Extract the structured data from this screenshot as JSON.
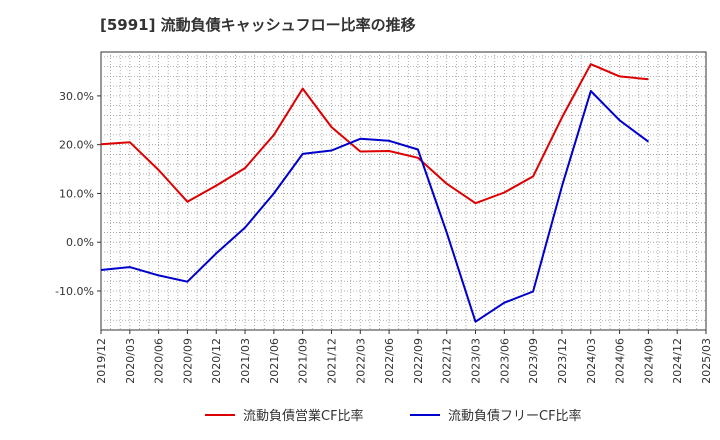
{
  "chart_data": {
    "type": "line",
    "title": "[5991]  流動負債キャッシュフロー比率の推移",
    "xlabel": "",
    "ylabel": "",
    "ylim": [
      -18,
      39
    ],
    "y_ticks": [
      -10,
      0,
      10,
      20,
      30
    ],
    "y_tick_labels": [
      "-10.0%",
      "0.0%",
      "10.0%",
      "20.0%",
      "30.0%"
    ],
    "x": [
      "2019/12",
      "2020/03",
      "2020/06",
      "2020/09",
      "2020/12",
      "2021/03",
      "2021/06",
      "2021/09",
      "2021/12",
      "2022/03",
      "2022/06",
      "2022/09",
      "2022/12",
      "2023/03",
      "2023/06",
      "2023/09",
      "2023/12",
      "2024/03",
      "2024/06",
      "2024/09",
      "2024/12",
      "2025/03"
    ],
    "grid": true,
    "legend_position": "bottom",
    "series": [
      {
        "name": "流動負債営業CF比率",
        "color": "#dd0000",
        "values": [
          20.1,
          20.5,
          14.8,
          8.3,
          11.6,
          15.2,
          22.0,
          31.5,
          23.6,
          18.6,
          18.7,
          17.3,
          12.0,
          8.0,
          10.2,
          13.5,
          25.6,
          36.5,
          34.0,
          33.4,
          null,
          null
        ]
      },
      {
        "name": "流動負債フリーCF比率",
        "color": "#0000cc",
        "values": [
          -5.7,
          -5.1,
          -6.8,
          -8.1,
          -2.3,
          3.0,
          10.0,
          18.1,
          18.8,
          21.2,
          20.8,
          19.0,
          2.0,
          -16.3,
          -12.4,
          -10.1,
          11.5,
          31.0,
          25.0,
          20.6,
          null,
          null
        ]
      }
    ]
  }
}
